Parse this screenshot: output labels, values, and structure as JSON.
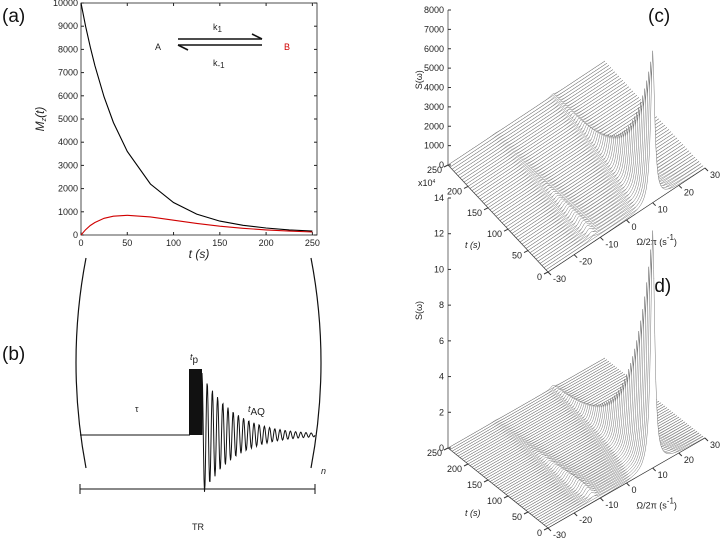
{
  "chart_data": [
    {
      "type": "line",
      "panel": "(a)",
      "xlabel": "t (s)",
      "ylabel": {
        "main": "M",
        "sub": "z",
        "rest": "(t)"
      },
      "x": [
        0,
        5,
        10,
        15,
        25,
        35,
        50,
        75,
        100,
        125,
        150,
        175,
        200,
        225,
        250
      ],
      "series": [
        {
          "name": "A",
          "color": "#000000",
          "values": [
            10000,
            9000,
            8100,
            7300,
            5950,
            4850,
            3600,
            2200,
            1400,
            900,
            600,
            420,
            300,
            220,
            170
          ]
        },
        {
          "name": "B",
          "color": "#d00000",
          "values": [
            0,
            230,
            410,
            540,
            720,
            810,
            850,
            780,
            640,
            500,
            380,
            290,
            220,
            170,
            130
          ]
        }
      ],
      "rate_constants": [
        {
          "text": "k",
          "sub": "1"
        },
        {
          "text": "k",
          "sub": "-1"
        }
      ],
      "xlim": [
        0,
        255
      ],
      "ylim": [
        0,
        10000
      ],
      "xticks": [
        0,
        50,
        100,
        150,
        200,
        250
      ],
      "yticks": [
        0,
        1000,
        2000,
        3000,
        4000,
        5000,
        6000,
        7000,
        8000,
        9000,
        10000
      ]
    },
    {
      "type": "waterfall",
      "panel": "(c)",
      "zlabel": "S(ω)",
      "tlabel": "t (s)",
      "omegalabel": {
        "main": "Ω/2π (s",
        "sup": "-1",
        "end": ")"
      },
      "zlim": [
        0,
        8000
      ],
      "zticks": [
        0,
        1000,
        2000,
        3000,
        4000,
        5000,
        6000,
        7000,
        8000
      ],
      "tlim": [
        0,
        250
      ],
      "tticks": [
        0,
        50,
        100,
        150,
        200,
        250
      ],
      "omegalim": [
        -30,
        30
      ],
      "omegaticks": [
        -30,
        -20,
        -10,
        0,
        10,
        20,
        30
      ]
    },
    {
      "type": "waterfall",
      "panel": "(d)",
      "zlabel": "S(ω)",
      "tlabel": "t (s)",
      "zscale": {
        "main": "x10",
        "sup": "4"
      },
      "omegalabel": {
        "main": "Ω/2π (s",
        "sup": "-1",
        "end": ")"
      },
      "zlim": [
        0,
        14
      ],
      "zticks": [
        0,
        2,
        4,
        6,
        8,
        10,
        12,
        14
      ],
      "tlim": [
        0,
        250
      ],
      "tticks": [
        0,
        50,
        100,
        150,
        200,
        250
      ],
      "omegalim": [
        -30,
        30
      ],
      "omegaticks": [
        -30,
        -20,
        -10,
        0,
        10,
        20,
        30
      ]
    }
  ],
  "diagram": {
    "panel": "(b)",
    "delay": "τ",
    "pulse": {
      "main": "t",
      "sub": "p"
    },
    "acquisition": {
      "main": "t",
      "sub": "AQ"
    },
    "repeat": "n",
    "period": "TR"
  }
}
